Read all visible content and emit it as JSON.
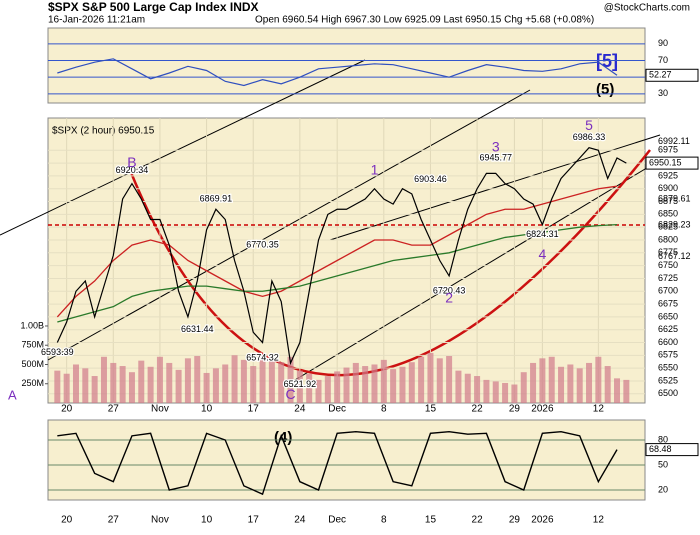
{
  "chart_data": {
    "type": "line",
    "title": "$SPX S&P 500 Large Cap Index INDX",
    "subtitle": "16-Jan-2026 11:21am",
    "quote": "Open 6960.54  High 6967.30  Low 6925.09  Last 6950.15  Chg +5.68 (+0.08%)",
    "credit": "@StockCharts.com",
    "legend": "$SPX (2 hour) 6950.15",
    "xlim": [
      -1,
      63
    ],
    "xticks": [
      {
        "value": 1,
        "label": "20"
      },
      {
        "value": 6,
        "label": "27"
      },
      {
        "value": 11,
        "label": "Nov"
      },
      {
        "value": 16,
        "label": "10"
      },
      {
        "value": 21,
        "label": "17"
      },
      {
        "value": 26,
        "label": "24"
      },
      {
        "value": 30,
        "label": "Dec"
      },
      {
        "value": 35,
        "label": "8"
      },
      {
        "value": 40,
        "label": "15"
      },
      {
        "value": 45,
        "label": "22"
      },
      {
        "value": 49,
        "label": "29"
      },
      {
        "value": 52,
        "label": "2026"
      },
      {
        "value": 58,
        "label": "12"
      }
    ],
    "rsi": {
      "ylim": [
        19,
        109
      ],
      "yticks": [
        30,
        50,
        70,
        90
      ],
      "color": "#2f4fbf",
      "last_label": "52.27",
      "x": [
        0,
        2,
        4,
        6,
        8,
        10,
        12,
        14,
        16,
        18,
        20,
        22,
        24,
        26,
        28,
        30,
        32,
        34,
        36,
        38,
        40,
        42,
        44,
        46,
        48,
        50,
        52,
        54,
        56,
        58,
        60
      ],
      "values": [
        55,
        62,
        68,
        72,
        60,
        48,
        55,
        63,
        58,
        45,
        40,
        47,
        42,
        50,
        60,
        62,
        64,
        66,
        65,
        60,
        55,
        50,
        58,
        65,
        62,
        58,
        57,
        60,
        66,
        68,
        52.27
      ]
    },
    "price": {
      "ylim": [
        6482,
        7038
      ],
      "yticks": [
        6500,
        6525,
        6550,
        6575,
        6600,
        6625,
        6650,
        6675,
        6700,
        6725,
        6750,
        6775,
        6800,
        6825,
        6850,
        6875,
        6900,
        6925,
        6950,
        6975
      ],
      "color": "#000000",
      "last_label": "6950.15",
      "reference": 6829.23,
      "x": [
        0,
        1,
        2,
        3,
        4,
        5,
        6,
        7,
        8,
        9,
        10,
        11,
        12,
        13,
        14,
        15,
        16,
        17,
        18,
        19,
        20,
        21,
        22,
        23,
        24,
        25,
        26,
        27,
        28,
        29,
        30,
        31,
        32,
        33,
        34,
        35,
        36,
        37,
        38,
        39,
        40,
        41,
        42,
        43,
        44,
        45,
        46,
        47,
        48,
        49,
        50,
        51,
        52,
        53,
        54,
        55,
        56,
        57,
        58,
        59,
        60,
        61
      ],
      "values": [
        6600,
        6640,
        6700,
        6720,
        6650,
        6710,
        6770,
        6880,
        6910,
        6880,
        6840,
        6840,
        6790,
        6700,
        6650,
        6720,
        6820,
        6860,
        6840,
        6760,
        6700,
        6620,
        6600,
        6720,
        6680,
        6560,
        6600,
        6700,
        6800,
        6850,
        6860,
        6860,
        6870,
        6880,
        6900,
        6880,
        6870,
        6900,
        6890,
        6840,
        6800,
        6760,
        6730,
        6800,
        6860,
        6900,
        6930,
        6930,
        6910,
        6900,
        6880,
        6870,
        6830,
        6880,
        6920,
        6940,
        6960,
        6980,
        6975,
        6920,
        6960,
        6950
      ],
      "series": [
        {
          "name": "MA50",
          "color": "#cc2222",
          "values": [
            6650,
            6690,
            6720,
            6760,
            6790,
            6800,
            6790,
            6760,
            6740,
            6720,
            6700,
            6690,
            6700,
            6720,
            6740,
            6760,
            6780,
            6800,
            6800,
            6790,
            6790,
            6810,
            6830,
            6850,
            6860,
            6860,
            6870,
            6880,
            6890,
            6900,
            6905
          ]
        },
        {
          "name": "MA200",
          "color": "#2a7a2a",
          "values": [
            6640,
            6650,
            6660,
            6670,
            6690,
            6700,
            6705,
            6710,
            6710,
            6705,
            6700,
            6700,
            6705,
            6710,
            6720,
            6730,
            6740,
            6750,
            6760,
            6765,
            6770,
            6775,
            6785,
            6795,
            6805,
            6810,
            6815,
            6820,
            6825,
            6828,
            6830
          ]
        }
      ],
      "right_labels": [
        {
          "value": 6992.11,
          "label": "6992.11"
        },
        {
          "value": 6879.61,
          "label": "6879.61"
        },
        {
          "value": 6829.23,
          "label": "6829.23"
        },
        {
          "value": 6767.12,
          "label": "6767.12"
        }
      ],
      "point_labels": [
        {
          "text": "6593.39",
          "x": 0,
          "y": 6580
        },
        {
          "text": "6920.34",
          "x": 8,
          "y": 6935
        },
        {
          "text": "6869.91",
          "x": 17,
          "y": 6880
        },
        {
          "text": "6631.44",
          "x": 15,
          "y": 6625
        },
        {
          "text": "6770.35",
          "x": 22,
          "y": 6790
        },
        {
          "text": "6574.32",
          "x": 22,
          "y": 6570
        },
        {
          "text": "6521.92",
          "x": 26,
          "y": 6518
        },
        {
          "text": "6903.46",
          "x": 40,
          "y": 6918
        },
        {
          "text": "6720.43",
          "x": 42,
          "y": 6700
        },
        {
          "text": "6945.77",
          "x": 47,
          "y": 6960
        },
        {
          "text": "6824.31",
          "x": 52,
          "y": 6810
        },
        {
          "text": "6986.33",
          "x": 57,
          "y": 7000
        }
      ],
      "wave_labels": [
        {
          "text": "B",
          "x": 8,
          "y": 6950,
          "color": "#7b2fbe"
        },
        {
          "text": "C",
          "x": 25,
          "y": 6497,
          "color": "#7b2fbe"
        },
        {
          "text": "1",
          "x": 34,
          "y": 6935,
          "color": "#7b2fbe"
        },
        {
          "text": "2",
          "x": 42,
          "y": 6685,
          "color": "#7b2fbe"
        },
        {
          "text": "3",
          "x": 47,
          "y": 6980,
          "color": "#7b2fbe"
        },
        {
          "text": "4",
          "x": 52,
          "y": 6770,
          "color": "#7b2fbe"
        },
        {
          "text": "5",
          "x": 57,
          "y": 7022,
          "color": "#7b2fbe"
        }
      ]
    },
    "volume": {
      "ylim": [
        0,
        3700
      ],
      "yticks": [
        {
          "value": 250,
          "label": "250M"
        },
        {
          "value": 500,
          "label": "500M"
        },
        {
          "value": 750,
          "label": "750M"
        },
        {
          "value": 1000,
          "label": "1.00B"
        }
      ],
      "color": "#d07a8a",
      "values": [
        420,
        380,
        500,
        450,
        350,
        600,
        520,
        480,
        400,
        550,
        470,
        600,
        520,
        430,
        580,
        610,
        390,
        450,
        500,
        620,
        560,
        480,
        640,
        590,
        530,
        600,
        420,
        380,
        300,
        350,
        410,
        460,
        520,
        480,
        500,
        560,
        440,
        470,
        530,
        600,
        650,
        580,
        610,
        420,
        380,
        350,
        300,
        280,
        260,
        240,
        400,
        520,
        580,
        600,
        470,
        500,
        450,
        520,
        600,
        480,
        320,
        300
      ]
    },
    "stoch": {
      "ylim": [
        8,
        104
      ],
      "yticks": [
        20,
        50,
        80
      ],
      "color": "#000000",
      "last_label": "68.48",
      "values": [
        85,
        88,
        40,
        30,
        85,
        88,
        20,
        25,
        88,
        80,
        25,
        15,
        85,
        30,
        20,
        88,
        90,
        88,
        30,
        25,
        88,
        90,
        87,
        88,
        30,
        20,
        88,
        90,
        85,
        30,
        68.48
      ]
    },
    "side_labels": [
      "A",
      "[5]",
      "(5)",
      "(4)"
    ]
  }
}
